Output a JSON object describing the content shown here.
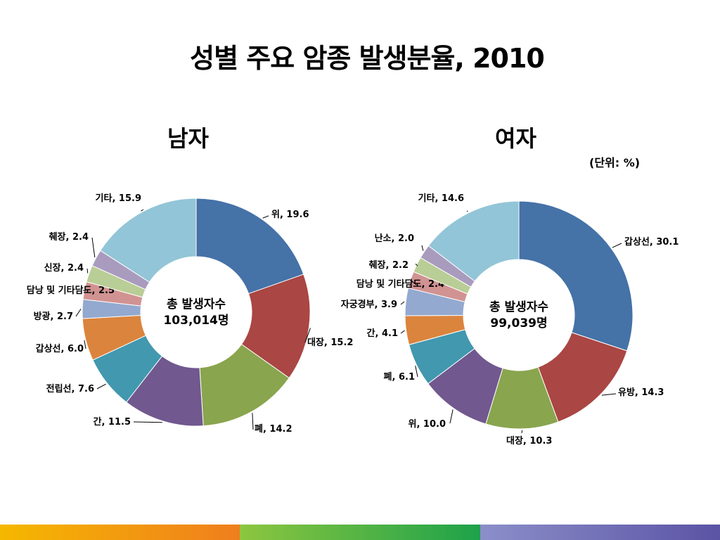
{
  "title": "성별 주요 암종 발생분율, 2010",
  "unit_note": "(단위: %)",
  "colors": [
    "#4572A7",
    "#AA4643",
    "#89A54E",
    "#71588F",
    "#4198AF",
    "#DB843D",
    "#93A9CF",
    "#D19392",
    "#B9CD96",
    "#A99BBD",
    "#92C5D7"
  ],
  "footer_colors": [
    "#F5B800",
    "#F07E1E",
    "#8DC63F",
    "#1DA24A",
    "#8B8FC9",
    "#5B53A5"
  ],
  "chart_data": [
    {
      "type": "pie",
      "title": "남자",
      "center_label_1": "총 발생자수",
      "center_label_2": "103,014명",
      "categories": [
        "위",
        "대장",
        "폐",
        "간",
        "전립선",
        "갑상선",
        "방광",
        "담낭 및 기타담도",
        "신장",
        "췌장",
        "기타"
      ],
      "values": [
        19.6,
        15.2,
        14.2,
        11.5,
        7.6,
        6.0,
        2.7,
        2.5,
        2.4,
        2.4,
        15.9
      ],
      "labels": [
        "위, 19.6",
        "대장, 15.2",
        "폐, 14.2",
        "간, 11.5",
        "전립선, 7.6",
        "갑상선, 6.0",
        "방광, 2.7",
        "담낭 및 기타담도, 2.5",
        "신장, 2.4",
        "췌장, 2.4",
        "기타, 15.9"
      ]
    },
    {
      "type": "pie",
      "title": "여자",
      "center_label_1": "총 발생자수",
      "center_label_2": "99,039명",
      "categories": [
        "갑상선",
        "유방",
        "대장",
        "위",
        "폐",
        "간",
        "자궁경부",
        "담낭 및 기타담도",
        "췌장",
        "난소",
        "기타"
      ],
      "values": [
        30.1,
        14.3,
        10.3,
        10.0,
        6.1,
        4.1,
        3.9,
        2.4,
        2.2,
        2.0,
        14.6
      ],
      "labels": [
        "갑상선, 30.1",
        "유방, 14.3",
        "대장, 10.3",
        "위, 10.0",
        "폐, 6.1",
        "간, 4.1",
        "자궁경부, 3.9",
        "담낭 및 기타담도, 2.4",
        "췌장, 2.2",
        "난소, 2.0",
        "기타, 14.6"
      ]
    }
  ]
}
